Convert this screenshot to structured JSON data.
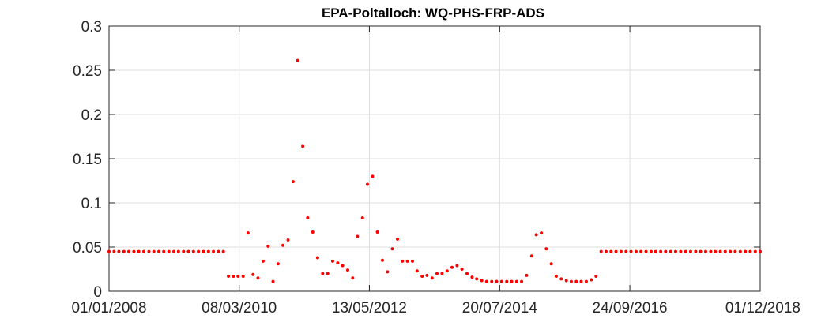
{
  "chart_data": {
    "type": "scatter",
    "title": "EPA-Poltalloch: WQ-PHS-FRP-ADS",
    "xlabel": "",
    "ylabel": "",
    "x_axis_type": "date",
    "xlim": [
      "2008-01-01",
      "2018-12-01"
    ],
    "ylim": [
      0,
      0.3
    ],
    "x_ticks": [
      "2008-01-01",
      "2010-03-08",
      "2012-05-13",
      "2014-07-20",
      "2016-09-24",
      "2018-12-01"
    ],
    "x_tick_labels": [
      "01/01/2008",
      "08/03/2010",
      "13/05/2012",
      "20/07/2014",
      "24/09/2016",
      "01/12/2018"
    ],
    "y_ticks": [
      0,
      0.05,
      0.1,
      0.15,
      0.2,
      0.25,
      0.3
    ],
    "y_tick_labels": [
      "0",
      "0.05",
      "0.1",
      "0.15",
      "0.2",
      "0.25",
      "0.3"
    ],
    "grid": true,
    "marker_color": "#ff0000",
    "series": [
      {
        "points": [
          [
            "2008-01-01",
            0.045
          ],
          [
            "2008-02-01",
            0.045
          ],
          [
            "2008-03-01",
            0.045
          ],
          [
            "2008-04-01",
            0.045
          ],
          [
            "2008-05-01",
            0.045
          ],
          [
            "2008-06-01",
            0.045
          ],
          [
            "2008-07-01",
            0.045
          ],
          [
            "2008-08-01",
            0.045
          ],
          [
            "2008-09-01",
            0.045
          ],
          [
            "2008-10-01",
            0.045
          ],
          [
            "2008-11-01",
            0.045
          ],
          [
            "2008-12-01",
            0.045
          ],
          [
            "2009-01-01",
            0.045
          ],
          [
            "2009-02-01",
            0.045
          ],
          [
            "2009-03-01",
            0.045
          ],
          [
            "2009-04-01",
            0.045
          ],
          [
            "2009-05-01",
            0.045
          ],
          [
            "2009-06-01",
            0.045
          ],
          [
            "2009-07-01",
            0.045
          ],
          [
            "2009-08-01",
            0.045
          ],
          [
            "2009-09-01",
            0.045
          ],
          [
            "2009-10-01",
            0.045
          ],
          [
            "2009-11-01",
            0.045
          ],
          [
            "2009-12-01",
            0.045
          ],
          [
            "2010-01-01",
            0.017
          ],
          [
            "2010-02-01",
            0.017
          ],
          [
            "2010-03-01",
            0.017
          ],
          [
            "2010-04-01",
            0.017
          ],
          [
            "2010-05-01",
            0.066
          ],
          [
            "2010-06-01",
            0.019
          ],
          [
            "2010-07-01",
            0.015
          ],
          [
            "2010-08-01",
            0.034
          ],
          [
            "2010-09-01",
            0.051
          ],
          [
            "2010-10-01",
            0.011
          ],
          [
            "2010-11-01",
            0.031
          ],
          [
            "2010-12-01",
            0.052
          ],
          [
            "2011-01-01",
            0.058
          ],
          [
            "2011-02-01",
            0.124
          ],
          [
            "2011-03-01",
            0.261
          ],
          [
            "2011-04-01",
            0.164
          ],
          [
            "2011-05-01",
            0.083
          ],
          [
            "2011-06-01",
            0.067
          ],
          [
            "2011-07-01",
            0.038
          ],
          [
            "2011-08-01",
            0.02
          ],
          [
            "2011-09-01",
            0.02
          ],
          [
            "2011-10-01",
            0.034
          ],
          [
            "2011-11-01",
            0.032
          ],
          [
            "2011-12-01",
            0.029
          ],
          [
            "2012-01-01",
            0.024
          ],
          [
            "2012-02-01",
            0.015
          ],
          [
            "2012-03-01",
            0.062
          ],
          [
            "2012-04-01",
            0.083
          ],
          [
            "2012-05-01",
            0.121
          ],
          [
            "2012-06-01",
            0.13
          ],
          [
            "2012-07-01",
            0.067
          ],
          [
            "2012-08-01",
            0.035
          ],
          [
            "2012-09-01",
            0.022
          ],
          [
            "2012-10-01",
            0.048
          ],
          [
            "2012-11-01",
            0.059
          ],
          [
            "2012-12-01",
            0.034
          ],
          [
            "2013-01-01",
            0.034
          ],
          [
            "2013-02-01",
            0.034
          ],
          [
            "2013-03-01",
            0.023
          ],
          [
            "2013-04-01",
            0.017
          ],
          [
            "2013-05-01",
            0.018
          ],
          [
            "2013-06-01",
            0.015
          ],
          [
            "2013-07-01",
            0.02
          ],
          [
            "2013-08-01",
            0.02
          ],
          [
            "2013-09-01",
            0.023
          ],
          [
            "2013-10-01",
            0.027
          ],
          [
            "2013-11-01",
            0.029
          ],
          [
            "2013-12-01",
            0.025
          ],
          [
            "2014-01-01",
            0.02
          ],
          [
            "2014-02-01",
            0.016
          ],
          [
            "2014-03-01",
            0.014
          ],
          [
            "2014-04-01",
            0.012
          ],
          [
            "2014-05-01",
            0.011
          ],
          [
            "2014-06-01",
            0.011
          ],
          [
            "2014-07-01",
            0.011
          ],
          [
            "2014-08-01",
            0.011
          ],
          [
            "2014-09-01",
            0.011
          ],
          [
            "2014-10-01",
            0.011
          ],
          [
            "2014-11-01",
            0.011
          ],
          [
            "2014-12-01",
            0.011
          ],
          [
            "2015-01-01",
            0.018
          ],
          [
            "2015-02-01",
            0.04
          ],
          [
            "2015-03-01",
            0.064
          ],
          [
            "2015-04-01",
            0.066
          ],
          [
            "2015-05-01",
            0.048
          ],
          [
            "2015-06-01",
            0.031
          ],
          [
            "2015-07-01",
            0.017
          ],
          [
            "2015-08-01",
            0.014
          ],
          [
            "2015-09-01",
            0.012
          ],
          [
            "2015-10-01",
            0.011
          ],
          [
            "2015-11-01",
            0.011
          ],
          [
            "2015-12-01",
            0.011
          ],
          [
            "2016-01-01",
            0.011
          ],
          [
            "2016-02-01",
            0.013
          ],
          [
            "2016-03-01",
            0.017
          ],
          [
            "2016-04-01",
            0.045
          ],
          [
            "2016-05-01",
            0.045
          ],
          [
            "2016-06-01",
            0.045
          ],
          [
            "2016-07-01",
            0.045
          ],
          [
            "2016-08-01",
            0.045
          ],
          [
            "2016-09-01",
            0.045
          ],
          [
            "2016-10-01",
            0.045
          ],
          [
            "2016-11-01",
            0.045
          ],
          [
            "2016-12-01",
            0.045
          ],
          [
            "2017-01-01",
            0.045
          ],
          [
            "2017-02-01",
            0.045
          ],
          [
            "2017-03-01",
            0.045
          ],
          [
            "2017-04-01",
            0.045
          ],
          [
            "2017-05-01",
            0.045
          ],
          [
            "2017-06-01",
            0.045
          ],
          [
            "2017-07-01",
            0.045
          ],
          [
            "2017-08-01",
            0.045
          ],
          [
            "2017-09-01",
            0.045
          ],
          [
            "2017-10-01",
            0.045
          ],
          [
            "2017-11-01",
            0.045
          ],
          [
            "2017-12-01",
            0.045
          ],
          [
            "2018-01-01",
            0.045
          ],
          [
            "2018-02-01",
            0.045
          ],
          [
            "2018-03-01",
            0.045
          ],
          [
            "2018-04-01",
            0.045
          ],
          [
            "2018-05-01",
            0.045
          ],
          [
            "2018-06-01",
            0.045
          ],
          [
            "2018-07-01",
            0.045
          ],
          [
            "2018-08-01",
            0.045
          ],
          [
            "2018-09-01",
            0.045
          ],
          [
            "2018-10-01",
            0.045
          ],
          [
            "2018-11-01",
            0.045
          ],
          [
            "2018-12-01",
            0.045
          ]
        ]
      }
    ]
  }
}
